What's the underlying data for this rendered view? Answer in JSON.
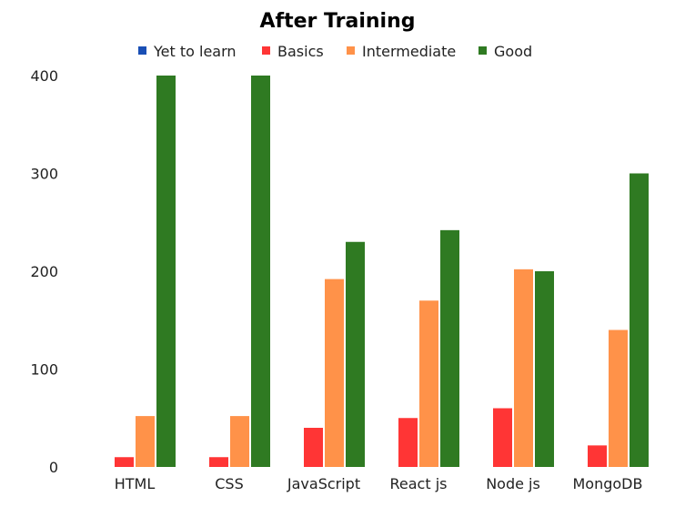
{
  "chart_data": {
    "type": "bar",
    "title": "After Training",
    "xlabel": "",
    "ylabel": "",
    "ylim": [
      0,
      400
    ],
    "yticks": [
      0,
      100,
      200,
      300,
      400
    ],
    "grid": false,
    "legend_position": "top",
    "categories": [
      "HTML",
      "CSS",
      "JavaScript",
      "React js",
      "Node js",
      "MongoDB"
    ],
    "series": [
      {
        "name": "Yet to learn",
        "color": "#1a4fb5",
        "values": [
          0,
          0,
          0,
          0,
          0,
          0
        ]
      },
      {
        "name": "Basics",
        "color": "#ff3535",
        "values": [
          10,
          10,
          40,
          50,
          60,
          22
        ]
      },
      {
        "name": "Intermediate",
        "color": "#ff9249",
        "values": [
          52,
          52,
          192,
          170,
          202,
          140
        ]
      },
      {
        "name": "Good",
        "color": "#2f7a22",
        "values": [
          400,
          400,
          230,
          242,
          200,
          300
        ]
      }
    ]
  }
}
